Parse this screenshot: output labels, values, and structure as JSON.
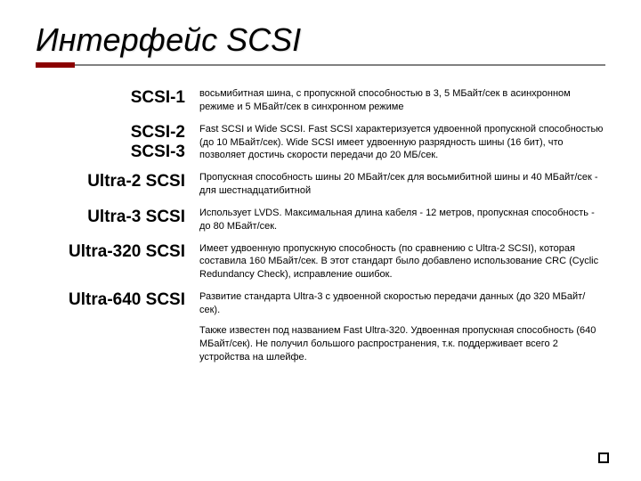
{
  "title": "Интерфейс SCSI",
  "rule": {
    "gray_color": "#808080",
    "accent_color": "#8b0000"
  },
  "rows": [
    {
      "term": "SCSI-1",
      "term_class": "fs-large",
      "desc": "восьмибитная шина, с пропускной способностью в 3, 5 МБайт/сек в асинхронном режиме и 5 МБайт/сек в синхронном режиме"
    },
    {
      "term": "SCSI-2\nSCSI-3",
      "term_class": "fs-large multi",
      "desc": "Fast SCSI и Wide SCSI. Fast SCSI характеризуется удвоенной пропускной способностью (до 10 МБайт/сек). Wide SCSI имеет удвоенную разрядность шины (16 бит), что позволяет достичь скорости передачи до 20 МБ/сек."
    },
    {
      "term": "Ultra-2 SCSI",
      "term_class": "fs-med",
      "desc": "Пропускная способность шины 20 МБайт/сек для восьмибитной шины и 40 МБайт/сек - для шестнадцатибитной"
    },
    {
      "term": "Ultra-3 SCSI",
      "term_class": "fs-med",
      "desc": "Использует LVDS. Максимальная длина кабеля - 12 метров, пропускная способность - до 80 МБайт/сек."
    },
    {
      "term": "Ultra-320 SCSI",
      "term_class": "fs-med multi",
      "desc": "Имеет удвоенную пропускную способность (по сравнению с Ultra-2 SCSI), которая составила 160 МБайт/сек. В этот стандарт было добавлено использование CRC (Cyclic Redundancy Check), исправление ошибок."
    },
    {
      "term": "Ultra-640 SCSI",
      "term_class": "fs-med multi",
      "desc": "Развитие стандарта Ultra-3 с удвоенной скоростью передачи данных (до 320 МБайт/сек).",
      "desc2": "Также известен под названием Fast Ultra-320. Удвоенная пропускная способность (640 МБайт/сек). Не получил большого распространения, т.к. поддерживает всего 2 устройства на шлейфе."
    }
  ],
  "colors": {
    "text": "#000000",
    "background": "#ffffff"
  },
  "typography": {
    "title_fontsize": 36,
    "term_fontsize": 19,
    "desc_fontsize": 11,
    "title_style": "italic"
  }
}
